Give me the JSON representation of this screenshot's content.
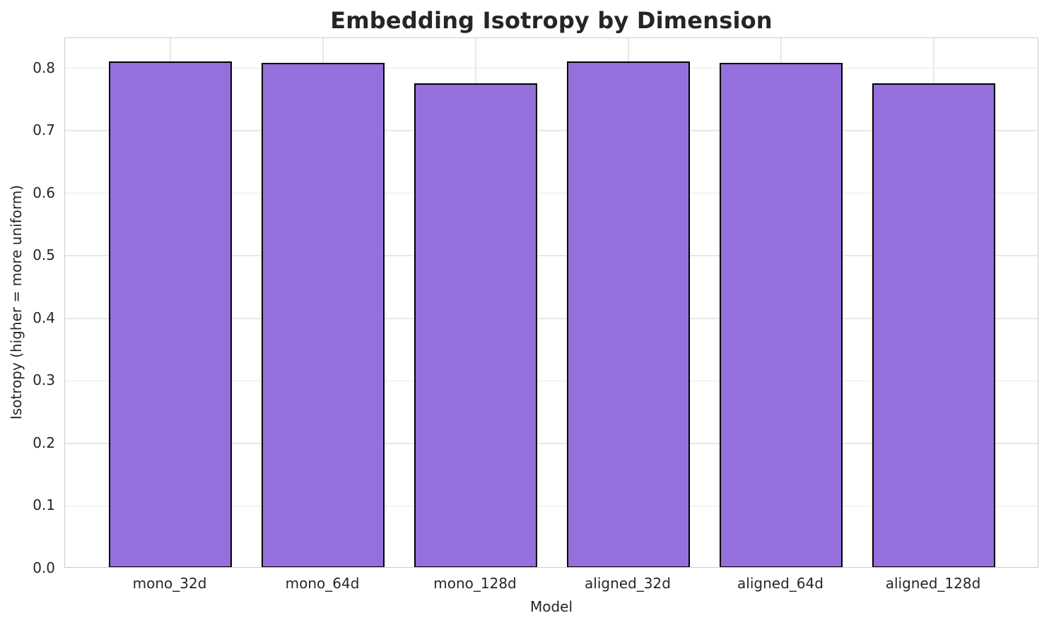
{
  "chart_data": {
    "type": "bar",
    "title": "Embedding Isotropy by Dimension",
    "xlabel": "Model",
    "ylabel": "Isotropy (higher = more uniform)",
    "categories": [
      "mono_32d",
      "mono_64d",
      "mono_128d",
      "aligned_32d",
      "aligned_64d",
      "aligned_128d"
    ],
    "values": [
      0.808,
      0.806,
      0.774,
      0.808,
      0.806,
      0.774
    ],
    "ylim": [
      0,
      0.848
    ],
    "yticks": [
      0.0,
      0.1,
      0.2,
      0.3,
      0.4,
      0.5,
      0.6,
      0.7,
      0.8
    ],
    "grid": "both",
    "legend": "none",
    "colors": {
      "bar_fill": "#9370db",
      "bar_edge": "#000000",
      "grid_line": "#e8e8e8",
      "spine": "#cccccc",
      "tick_text": "#262626",
      "title_text": "#252525"
    }
  }
}
